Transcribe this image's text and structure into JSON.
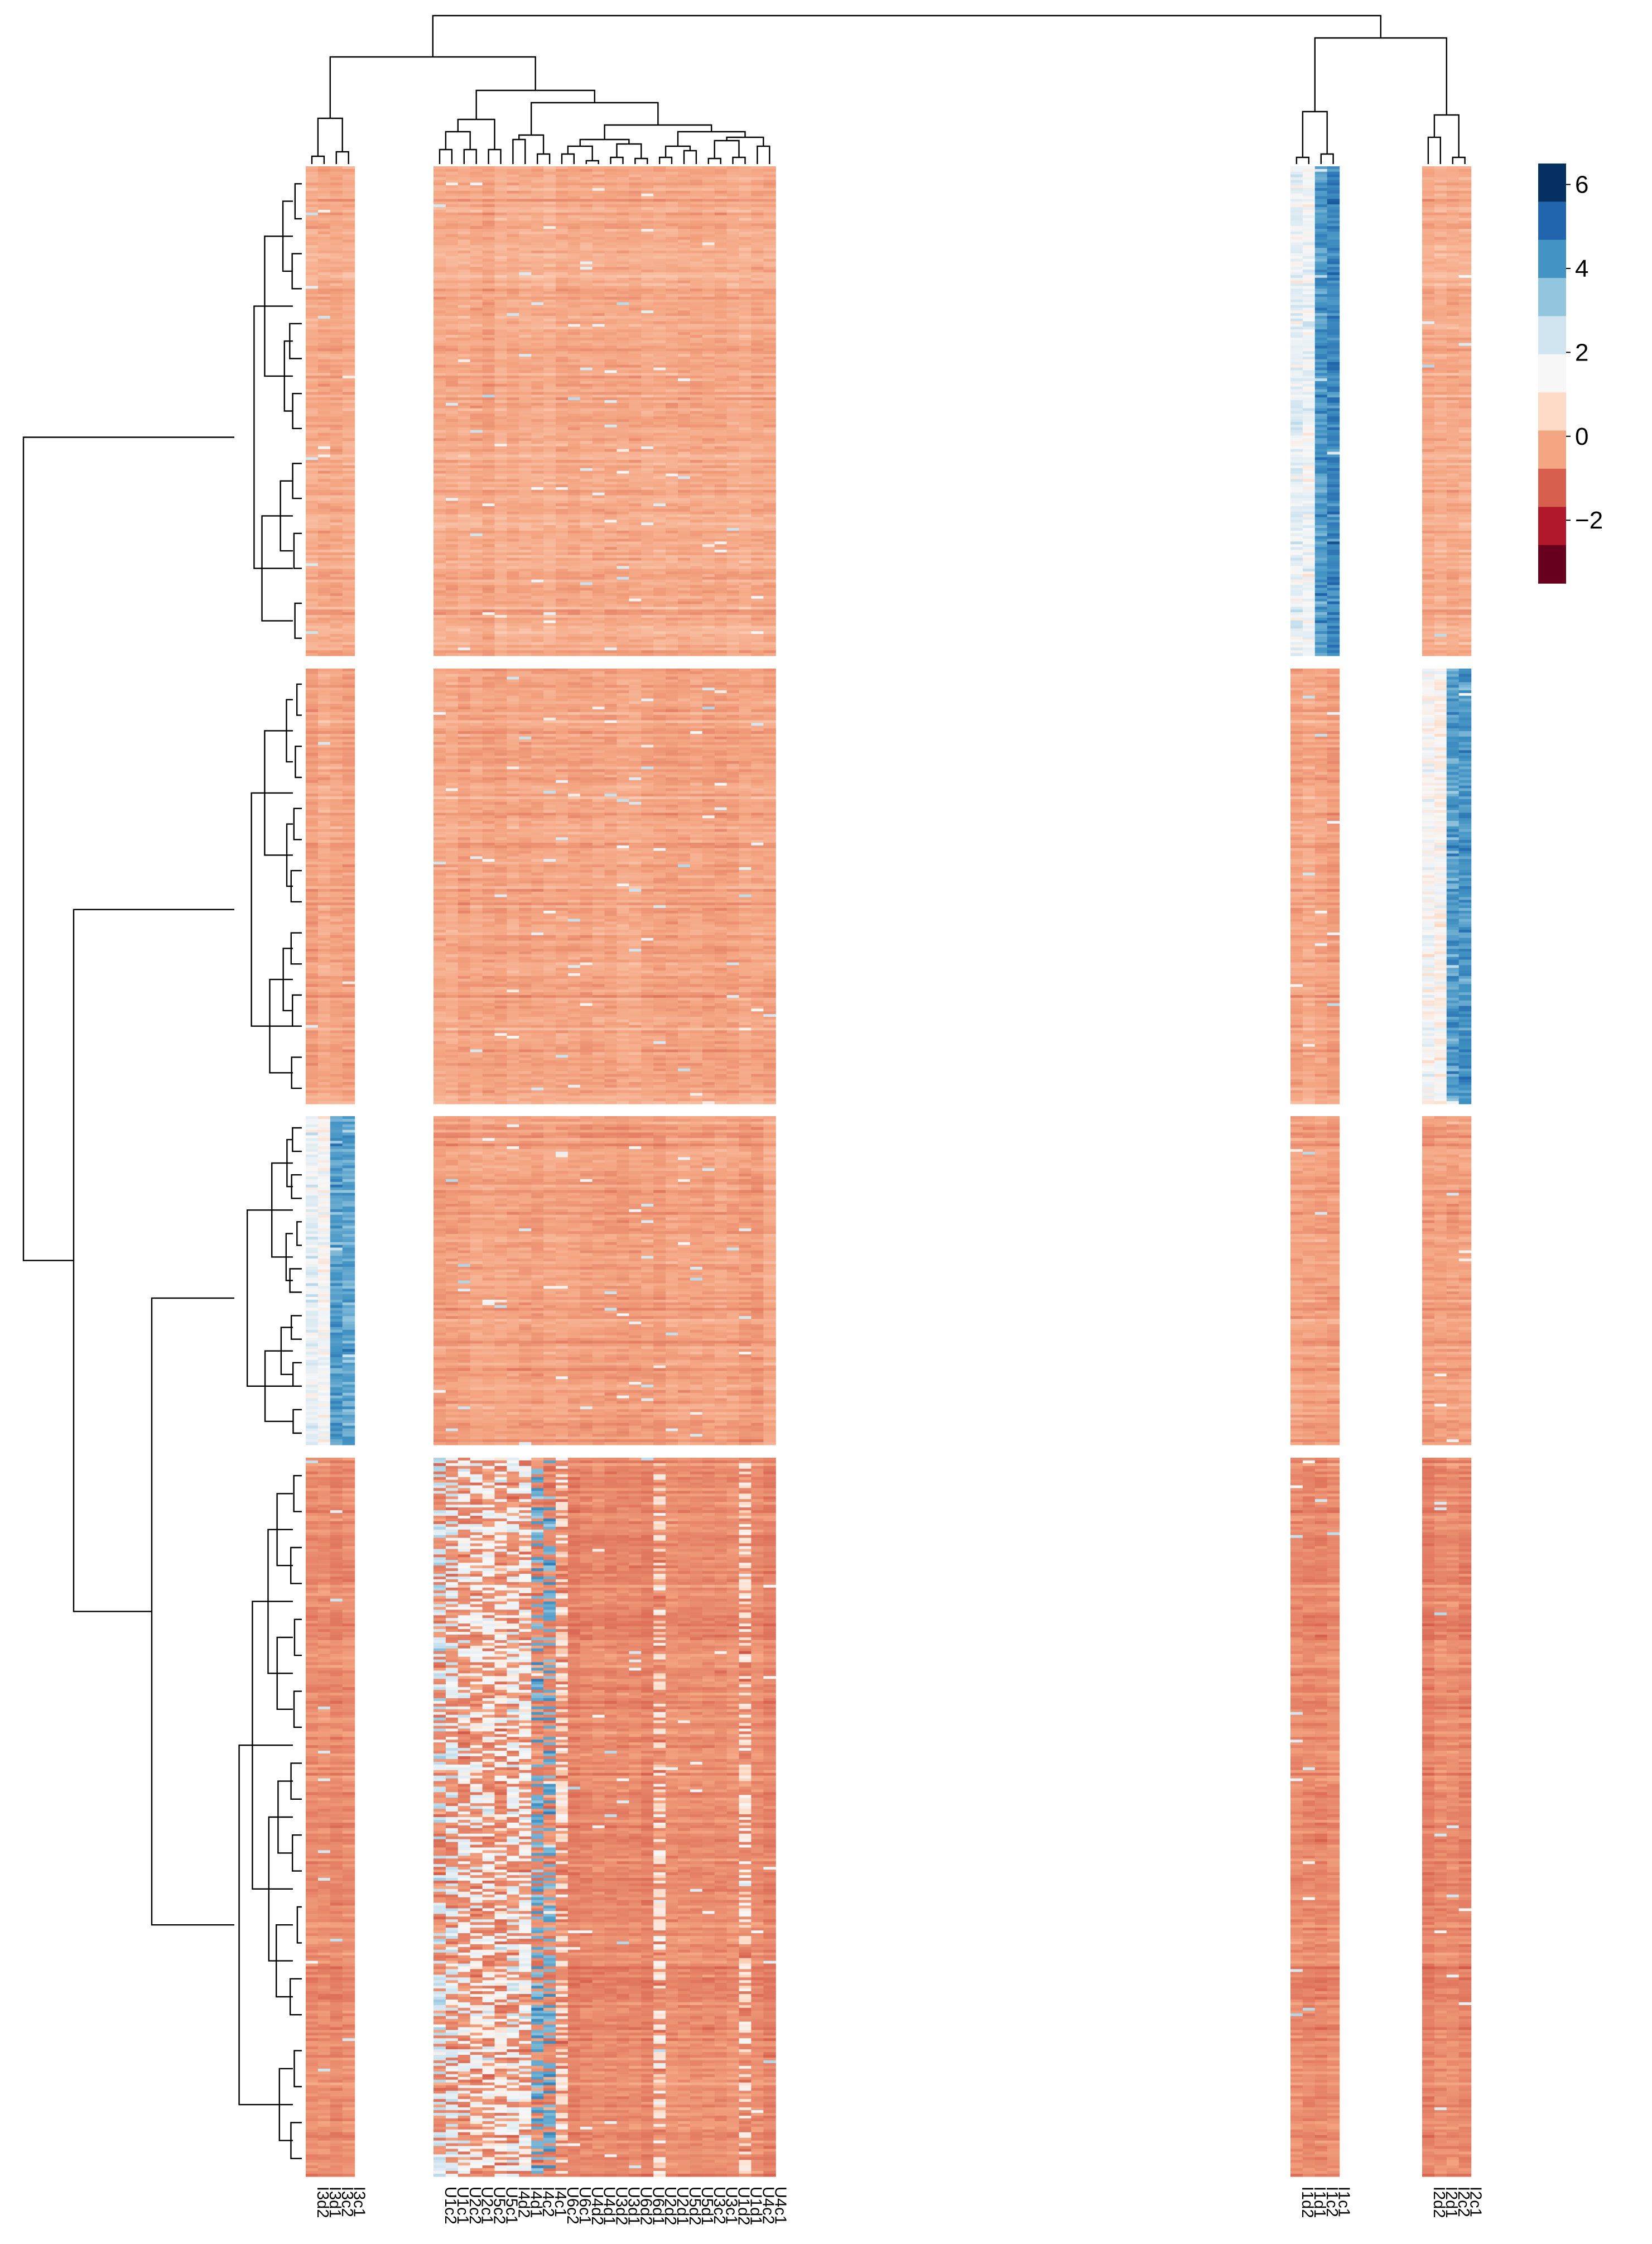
{
  "chart_data": {
    "type": "heatmap",
    "columns": [
      "I3d2",
      "I3d1",
      "I3c2",
      "I3c1",
      "U1c2",
      "U1c1",
      "U2c2",
      "U2c1",
      "U5c2",
      "U5c1",
      "I4d2",
      "I4d1",
      "I4c2",
      "I4c1",
      "U6c2",
      "U6c1",
      "U4d2",
      "U4d1",
      "U3d2",
      "U3d1",
      "U6d2",
      "U6d1",
      "U2d2",
      "U2d1",
      "U5d2",
      "U5d1",
      "U3c2",
      "U3c1",
      "U1d2",
      "U1d1",
      "U4c2",
      "U4c1",
      "I1d2",
      "I1d1",
      "I1c2",
      "I1c1",
      "I2d2",
      "I2d1",
      "I2c2",
      "I2c1"
    ],
    "column_groups": [
      [
        "I3d2",
        "I3d1",
        "I3c2",
        "I3c1"
      ],
      [
        "U1c2",
        "U1c1",
        "U2c2",
        "U2c1",
        "U5c2",
        "U5c1",
        "I4d2",
        "I4d1",
        "I4c2",
        "I4c1",
        "U6c2",
        "U6c1",
        "U4d2",
        "U4d1",
        "U3d2",
        "U3d1",
        "U6d2",
        "U6d1",
        "U2d2",
        "U2d1",
        "U5d2",
        "U5d1",
        "U3c2",
        "U3c1",
        "U1d2",
        "U1d1",
        "U4c2",
        "U4c1"
      ],
      [
        "I1d2",
        "I1d1",
        "I1c2",
        "I1c1"
      ],
      [
        "I2d2",
        "I2d1",
        "I2c2",
        "I2c1"
      ]
    ],
    "row_clusters": [
      {
        "rows": 180,
        "baseline": -0.4,
        "high": {
          "I1d2": 1.9,
          "I1d1": 1.7,
          "I1c2": 4.4,
          "I1c1": 4.8
        }
      },
      {
        "rows": 160,
        "baseline": -0.45,
        "high": {
          "I2d2": 1.5,
          "I2d1": 1.2,
          "I2c2": 4.3,
          "I2c1": 4.5
        }
      },
      {
        "rows": 120,
        "baseline": -0.55,
        "high": {
          "I3d2": 1.9,
          "I3d1": 1.5,
          "I3c2": 4.3,
          "I3c1": 4.1
        }
      },
      {
        "rows": 260,
        "baseline": -0.9,
        "high": {
          "U1c2": 2.6,
          "U1c1": 2.2,
          "U2c2": 1.8,
          "U2c1": 1.6,
          "U5c2": 1.5,
          "U5c1": 1.3,
          "I4d2": 1.8,
          "I4d1": 1.6,
          "I4c2": 4.0,
          "I4c1": 4.1,
          "U6c2": 0.8,
          "U2d2": 0.9,
          "U1d1": 0.9
        }
      }
    ],
    "color_scale": {
      "min": -3.5,
      "max": 6.5,
      "ticks": [
        6,
        4,
        2,
        0,
        -2
      ],
      "tick_labels": [
        "6",
        "4",
        "2",
        "0",
        "−2"
      ],
      "colors": [
        "#67001f",
        "#b2182b",
        "#d6604d",
        "#f4a582",
        "#fddbc7",
        "#f7f7f7",
        "#d1e5f0",
        "#92c5de",
        "#4393c3",
        "#2166ac",
        "#053061"
      ]
    },
    "legend_position": "top-right",
    "column_dendrogram": true,
    "row_dendrogram": true,
    "title": "",
    "xlabel": "",
    "ylabel": ""
  }
}
